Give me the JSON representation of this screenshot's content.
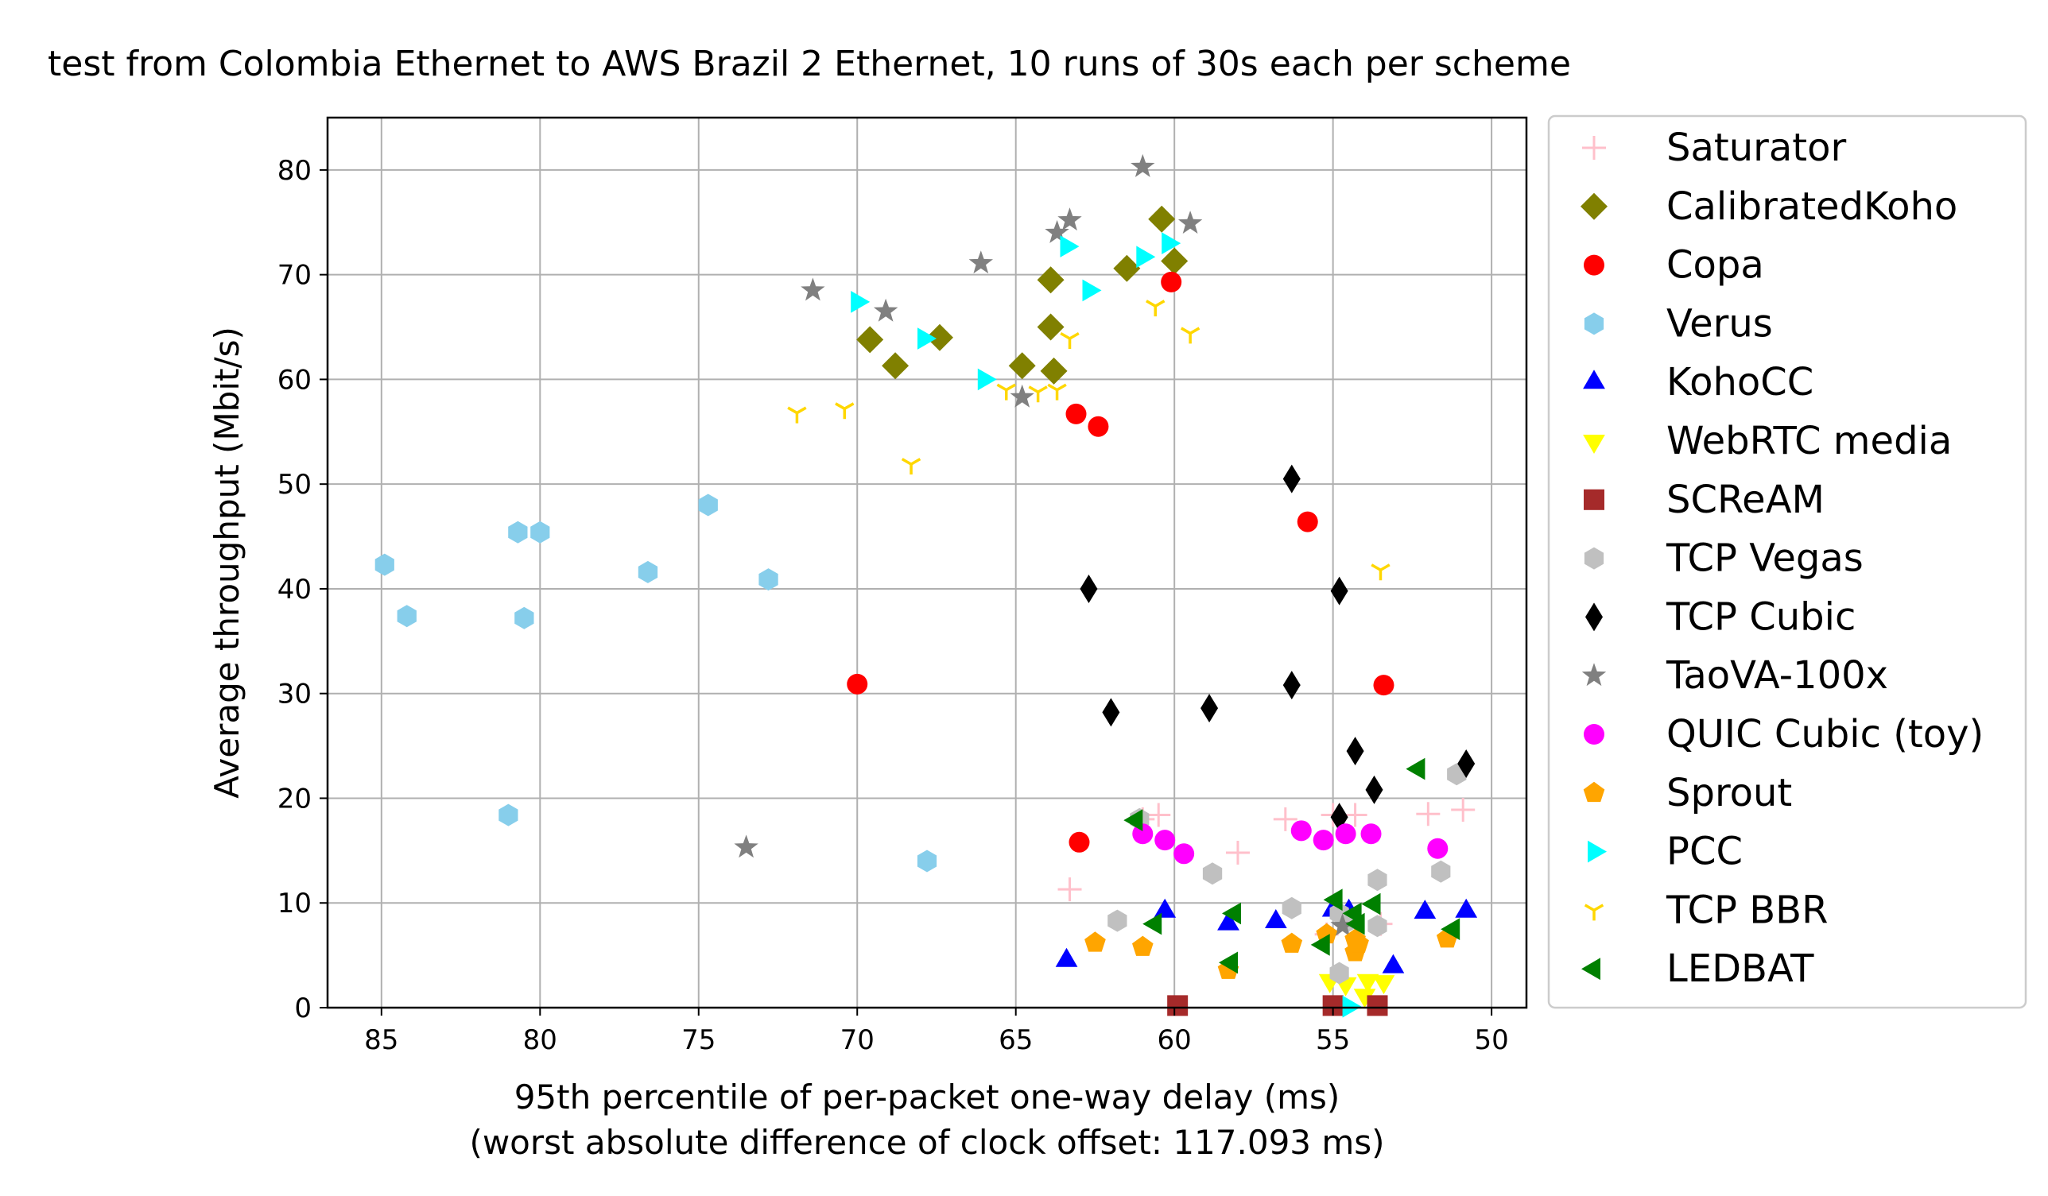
{
  "chart_data": {
    "type": "scatter",
    "title": "test from Colombia Ethernet to AWS Brazil 2 Ethernet, 10 runs of 30s each per scheme",
    "xlabel": "95th percentile of per-packet one-way delay (ms)",
    "xlabel2": "(worst absolute difference of clock offset: 117.093 ms)",
    "ylabel": "Average throughput (Mbit/s)",
    "x_inverted": true,
    "xlim": [
      86.7,
      48.9
    ],
    "ylim": [
      0,
      85
    ],
    "xticks": [
      85,
      80,
      75,
      70,
      65,
      60,
      55,
      50
    ],
    "yticks": [
      0,
      10,
      20,
      30,
      40,
      50,
      60,
      70,
      80
    ],
    "grid": true,
    "legend_position": "outside-right",
    "series": [
      {
        "name": "Saturator",
        "color": "#ffc0cb",
        "marker": "plus",
        "points": [
          [
            63.3,
            11.3
          ],
          [
            61.0,
            18.0
          ],
          [
            60.5,
            18.4
          ],
          [
            58.0,
            14.8
          ],
          [
            56.5,
            18.0
          ],
          [
            55.0,
            18.4
          ],
          [
            54.3,
            18.4
          ],
          [
            52.0,
            18.5
          ],
          [
            50.9,
            18.9
          ],
          [
            54.5,
            8.5
          ],
          [
            53.5,
            8.0
          ],
          [
            55.2,
            7.0
          ]
        ]
      },
      {
        "name": "CalibratedKoho",
        "color": "#808000",
        "marker": "diamond",
        "points": [
          [
            60.4,
            75.3
          ],
          [
            63.9,
            69.5
          ],
          [
            61.5,
            70.6
          ],
          [
            60.0,
            71.3
          ],
          [
            63.9,
            65.0
          ],
          [
            69.6,
            63.8
          ],
          [
            67.4,
            64.0
          ],
          [
            64.8,
            61.3
          ],
          [
            68.8,
            61.3
          ],
          [
            63.8,
            60.8
          ]
        ]
      },
      {
        "name": "Copa",
        "color": "#ff0000",
        "marker": "circle",
        "points": [
          [
            60.1,
            69.3
          ],
          [
            63.1,
            56.7
          ],
          [
            62.4,
            55.5
          ],
          [
            55.8,
            46.4
          ],
          [
            70.0,
            30.9
          ],
          [
            53.4,
            30.8
          ],
          [
            63.0,
            15.8
          ]
        ]
      },
      {
        "name": "Verus",
        "color": "#87ceeb",
        "marker": "hexagon",
        "points": [
          [
            84.9,
            42.3
          ],
          [
            84.2,
            37.4
          ],
          [
            80.7,
            45.4
          ],
          [
            80.0,
            45.4
          ],
          [
            80.5,
            37.2
          ],
          [
            76.6,
            41.6
          ],
          [
            74.7,
            48.0
          ],
          [
            72.8,
            40.9
          ],
          [
            81.0,
            18.4
          ],
          [
            67.8,
            14.0
          ]
        ]
      },
      {
        "name": "KohoCC",
        "color": "#0000ff",
        "marker": "triangle-up",
        "points": [
          [
            63.4,
            4.5
          ],
          [
            60.3,
            9.2
          ],
          [
            58.3,
            8.0
          ],
          [
            56.8,
            8.2
          ],
          [
            55.0,
            9.3
          ],
          [
            54.5,
            9.2
          ],
          [
            53.1,
            3.9
          ],
          [
            52.1,
            9.1
          ],
          [
            50.8,
            9.2
          ]
        ]
      },
      {
        "name": "WebRTC media",
        "color": "#ffff00",
        "marker": "triangle-down",
        "points": [
          [
            55.1,
            2.6
          ],
          [
            54.6,
            2.3
          ],
          [
            53.9,
            2.6
          ],
          [
            53.4,
            2.5
          ],
          [
            54.0,
            1.2
          ]
        ]
      },
      {
        "name": "SCReAM",
        "color": "#a52a2a",
        "marker": "square",
        "points": [
          [
            59.9,
            0.2
          ],
          [
            55.0,
            0.2
          ],
          [
            53.6,
            0.2
          ]
        ]
      },
      {
        "name": "TCP Vegas",
        "color": "#c0c0c0",
        "marker": "hexagon",
        "points": [
          [
            61.1,
            18.0
          ],
          [
            61.8,
            8.3
          ],
          [
            58.8,
            12.8
          ],
          [
            56.3,
            9.5
          ],
          [
            54.8,
            3.3
          ],
          [
            54.5,
            8.3
          ],
          [
            53.6,
            7.8
          ],
          [
            53.6,
            12.2
          ],
          [
            51.6,
            13.0
          ],
          [
            51.1,
            22.3
          ],
          [
            54.8,
            9.0
          ]
        ]
      },
      {
        "name": "TCP Cubic",
        "color": "#000000",
        "marker": "thin-diamond",
        "points": [
          [
            62.7,
            40.0
          ],
          [
            62.0,
            28.2
          ],
          [
            58.9,
            28.6
          ],
          [
            56.3,
            50.5
          ],
          [
            54.8,
            39.8
          ],
          [
            56.3,
            30.8
          ],
          [
            54.3,
            24.5
          ],
          [
            53.7,
            20.8
          ],
          [
            54.8,
            18.2
          ],
          [
            50.8,
            23.3
          ]
        ]
      },
      {
        "name": "TaoVA-100x",
        "color": "#808080",
        "marker": "star",
        "points": [
          [
            61.0,
            80.3
          ],
          [
            63.3,
            75.2
          ],
          [
            59.5,
            74.9
          ],
          [
            63.7,
            74.0
          ],
          [
            66.1,
            71.1
          ],
          [
            71.4,
            68.5
          ],
          [
            69.1,
            66.5
          ],
          [
            64.8,
            58.3
          ],
          [
            73.5,
            15.3
          ],
          [
            54.7,
            7.8
          ]
        ]
      },
      {
        "name": "QUIC Cubic (toy)",
        "color": "#ff00ff",
        "marker": "circle",
        "points": [
          [
            61.0,
            16.6
          ],
          [
            60.3,
            16.0
          ],
          [
            59.7,
            14.7
          ],
          [
            56.0,
            16.9
          ],
          [
            55.3,
            16.0
          ],
          [
            54.6,
            16.6
          ],
          [
            53.8,
            16.6
          ],
          [
            51.7,
            15.2
          ]
        ]
      },
      {
        "name": "Sprout",
        "color": "#ffa500",
        "marker": "pentagon",
        "points": [
          [
            62.5,
            6.2
          ],
          [
            61.0,
            5.8
          ],
          [
            58.3,
            3.6
          ],
          [
            56.3,
            6.1
          ],
          [
            55.2,
            7.0
          ],
          [
            54.3,
            6.5
          ],
          [
            54.3,
            5.3
          ],
          [
            54.2,
            6.1
          ],
          [
            51.4,
            6.6
          ]
        ]
      },
      {
        "name": "PCC",
        "color": "#00ffff",
        "marker": "triangle-right",
        "points": [
          [
            63.4,
            72.7
          ],
          [
            60.2,
            73.0
          ],
          [
            61.0,
            71.7
          ],
          [
            62.7,
            68.5
          ],
          [
            70.0,
            67.4
          ],
          [
            67.9,
            63.9
          ],
          [
            66.0,
            60.0
          ],
          [
            54.5,
            0.1
          ]
        ]
      },
      {
        "name": "TCP BBR",
        "color": "#ffd700",
        "marker": "tri-down",
        "points": [
          [
            60.6,
            67.0
          ],
          [
            59.5,
            64.4
          ],
          [
            63.3,
            63.9
          ],
          [
            65.3,
            59.0
          ],
          [
            64.3,
            58.8
          ],
          [
            63.7,
            59.0
          ],
          [
            71.9,
            56.8
          ],
          [
            70.4,
            57.2
          ],
          [
            68.3,
            51.9
          ],
          [
            53.5,
            41.8
          ]
        ]
      },
      {
        "name": "LEDBAT",
        "color": "#008000",
        "marker": "triangle-left",
        "points": [
          [
            61.2,
            17.9
          ],
          [
            60.6,
            8.0
          ],
          [
            58.1,
            9.0
          ],
          [
            58.2,
            4.3
          ],
          [
            55.3,
            6.0
          ],
          [
            54.9,
            10.3
          ],
          [
            54.3,
            9.0
          ],
          [
            53.7,
            9.9
          ],
          [
            52.3,
            22.8
          ],
          [
            51.2,
            7.5
          ],
          [
            54.2,
            8.0
          ]
        ]
      }
    ]
  }
}
